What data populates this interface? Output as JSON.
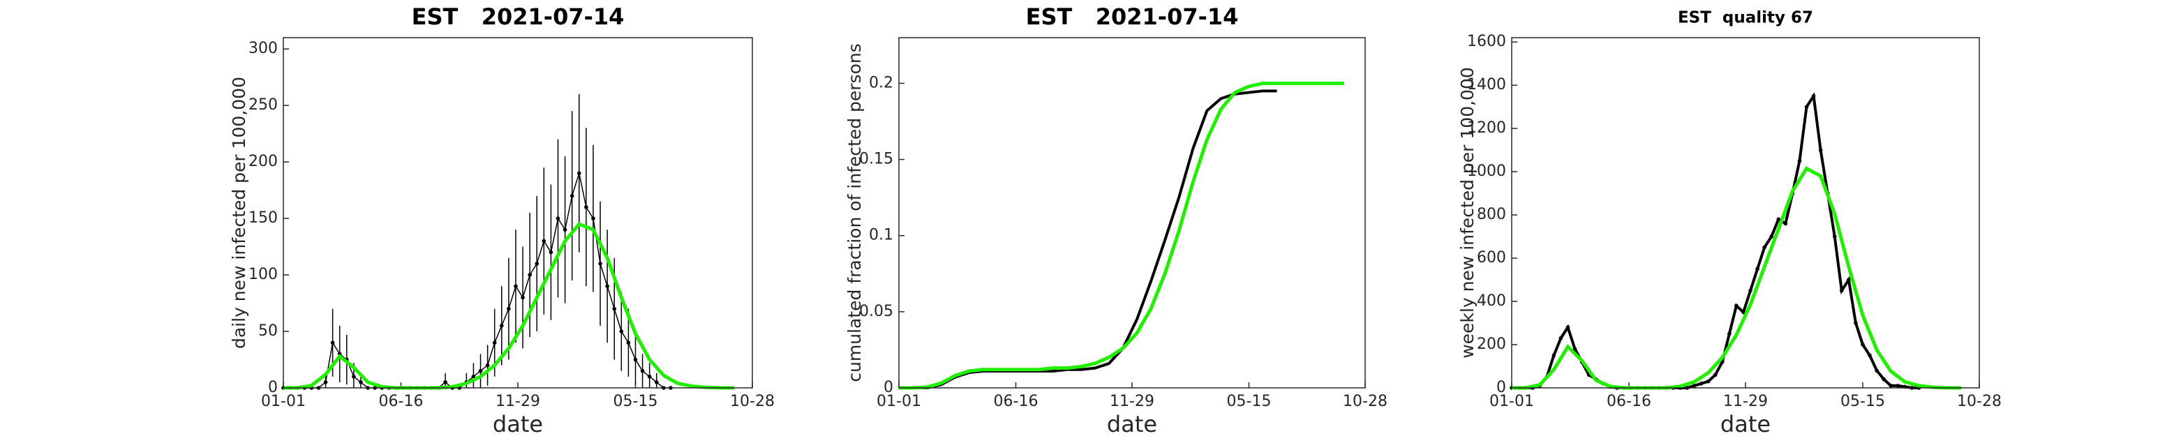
{
  "chart_data": [
    {
      "type": "errorbar",
      "title": "EST   2021-07-14",
      "xlabel": "date",
      "ylabel": "daily new infected per 100,000",
      "xlim": [
        0,
        666
      ],
      "xticks": [
        {
          "value": 0,
          "label": "01-01"
        },
        {
          "value": 167,
          "label": "06-16"
        },
        {
          "value": 333,
          "label": "11-29"
        },
        {
          "value": 500,
          "label": "05-15"
        },
        {
          "value": 666,
          "label": "10-28"
        }
      ],
      "ylim": [
        0,
        310
      ],
      "yticks": [
        0,
        50,
        100,
        150,
        200,
        250,
        300
      ],
      "series": [
        {
          "color": "#000000",
          "markers": true,
          "x": [
            0,
            10,
            20,
            30,
            40,
            50,
            60,
            70,
            80,
            90,
            100,
            110,
            120,
            130,
            140,
            150,
            160,
            170,
            180,
            190,
            200,
            210,
            220,
            230,
            240,
            250,
            260,
            270,
            280,
            290,
            300,
            310,
            320,
            330,
            340,
            350,
            360,
            370,
            380,
            390,
            400,
            410,
            420,
            430,
            440,
            450,
            460,
            470,
            480,
            490,
            500,
            510,
            520,
            530,
            540,
            550
          ],
          "values": [
            0,
            0,
            0,
            0,
            0,
            0,
            5,
            40,
            30,
            25,
            10,
            5,
            0,
            0,
            0,
            0,
            0,
            0,
            0,
            0,
            0,
            0,
            0,
            5,
            0,
            0,
            5,
            10,
            15,
            20,
            40,
            55,
            70,
            90,
            80,
            100,
            110,
            130,
            120,
            150,
            140,
            170,
            190,
            160,
            150,
            110,
            90,
            70,
            50,
            40,
            25,
            15,
            10,
            5,
            0,
            0
          ],
          "errors": [
            0,
            0,
            0,
            0,
            0,
            0,
            8,
            30,
            25,
            22,
            12,
            8,
            0,
            0,
            0,
            0,
            0,
            0,
            0,
            0,
            0,
            0,
            0,
            8,
            0,
            0,
            8,
            12,
            15,
            18,
            30,
            35,
            45,
            50,
            45,
            55,
            60,
            65,
            60,
            70,
            65,
            75,
            70,
            70,
            65,
            55,
            50,
            45,
            35,
            30,
            22,
            15,
            12,
            8,
            0,
            0
          ]
        },
        {
          "color": "#22ee00",
          "markers": false,
          "x": [
            0,
            20,
            40,
            60,
            80,
            100,
            120,
            140,
            160,
            180,
            200,
            220,
            240,
            260,
            280,
            300,
            320,
            340,
            360,
            380,
            400,
            420,
            440,
            460,
            480,
            500,
            520,
            540,
            560,
            580,
            600,
            620,
            640
          ],
          "values": [
            0,
            0,
            2,
            12,
            28,
            18,
            5,
            1,
            0,
            0,
            0,
            0,
            1,
            4,
            10,
            20,
            35,
            55,
            80,
            105,
            130,
            145,
            140,
            115,
            80,
            48,
            25,
            11,
            4,
            1.5,
            0.5,
            0,
            0
          ]
        }
      ]
    },
    {
      "type": "line",
      "title": "EST   2021-07-14",
      "xlabel": "date",
      "ylabel": "cumulated fraction of infected persons",
      "xlim": [
        0,
        666
      ],
      "xticks": [
        {
          "value": 0,
          "label": "01-01"
        },
        {
          "value": 167,
          "label": "06-16"
        },
        {
          "value": 333,
          "label": "11-29"
        },
        {
          "value": 500,
          "label": "05-15"
        },
        {
          "value": 666,
          "label": "10-28"
        }
      ],
      "ylim": [
        0,
        0.23
      ],
      "yticks": [
        0,
        0.05,
        0.1,
        0.15,
        0.2
      ],
      "series": [
        {
          "color": "#000000",
          "markers": false,
          "x": [
            0,
            20,
            40,
            60,
            80,
            100,
            120,
            140,
            160,
            180,
            200,
            220,
            240,
            260,
            280,
            300,
            320,
            340,
            360,
            380,
            400,
            420,
            440,
            460,
            480,
            500,
            520,
            540
          ],
          "values": [
            0,
            0,
            0,
            0.002,
            0.007,
            0.01,
            0.011,
            0.011,
            0.011,
            0.011,
            0.011,
            0.011,
            0.012,
            0.012,
            0.013,
            0.016,
            0.026,
            0.045,
            0.07,
            0.097,
            0.125,
            0.157,
            0.182,
            0.19,
            0.193,
            0.194,
            0.195,
            0.195
          ]
        },
        {
          "color": "#22ee00",
          "markers": false,
          "x": [
            0,
            20,
            40,
            60,
            80,
            100,
            120,
            140,
            160,
            180,
            200,
            220,
            240,
            260,
            280,
            300,
            320,
            340,
            360,
            380,
            400,
            420,
            440,
            460,
            480,
            500,
            520,
            540,
            560,
            580,
            600,
            620,
            636
          ],
          "values": [
            0,
            0,
            0.0005,
            0.003,
            0.008,
            0.011,
            0.012,
            0.012,
            0.012,
            0.012,
            0.012,
            0.013,
            0.013,
            0.014,
            0.016,
            0.02,
            0.026,
            0.036,
            0.052,
            0.075,
            0.103,
            0.135,
            0.163,
            0.183,
            0.194,
            0.198,
            0.2,
            0.2,
            0.2,
            0.2,
            0.2,
            0.2,
            0.2
          ]
        }
      ]
    },
    {
      "type": "line",
      "title": "EST  quality 67",
      "xlabel": "date",
      "ylabel": "weekly new infected per 100,000",
      "xlim": [
        0,
        666
      ],
      "xticks": [
        {
          "value": 0,
          "label": "01-01"
        },
        {
          "value": 167,
          "label": "06-16"
        },
        {
          "value": 333,
          "label": "11-29"
        },
        {
          "value": 500,
          "label": "05-15"
        },
        {
          "value": 666,
          "label": "10-28"
        }
      ],
      "ylim": [
        0,
        1620
      ],
      "yticks": [
        0,
        200,
        400,
        600,
        800,
        1000,
        1200,
        1400,
        1600
      ],
      "series": [
        {
          "color": "#000000",
          "markers": true,
          "x": [
            0,
            10,
            20,
            30,
            40,
            50,
            60,
            70,
            80,
            90,
            100,
            110,
            120,
            130,
            140,
            150,
            160,
            170,
            180,
            190,
            200,
            210,
            220,
            230,
            240,
            250,
            260,
            270,
            280,
            290,
            300,
            310,
            320,
            330,
            340,
            350,
            360,
            370,
            380,
            390,
            400,
            410,
            420,
            430,
            440,
            450,
            460,
            470,
            480,
            490,
            500,
            510,
            520,
            530,
            540,
            550,
            560,
            570,
            580
          ],
          "values": [
            0,
            0,
            0,
            0,
            10,
            50,
            150,
            230,
            280,
            180,
            120,
            60,
            40,
            20,
            5,
            0,
            0,
            0,
            0,
            0,
            0,
            0,
            0,
            0,
            0,
            0,
            10,
            20,
            30,
            60,
            120,
            250,
            380,
            350,
            450,
            550,
            650,
            700,
            780,
            760,
            900,
            1050,
            1300,
            1350,
            1100,
            900,
            700,
            450,
            500,
            300,
            200,
            150,
            80,
            40,
            10,
            10,
            5,
            0,
            0
          ]
        },
        {
          "color": "#22ee00",
          "markers": false,
          "x": [
            0,
            20,
            40,
            60,
            80,
            100,
            120,
            140,
            160,
            180,
            200,
            220,
            240,
            260,
            280,
            300,
            320,
            340,
            360,
            380,
            400,
            420,
            440,
            460,
            480,
            500,
            520,
            540,
            560,
            580,
            600,
            620,
            640
          ],
          "values": [
            0,
            0,
            14,
            84,
            190,
            126,
            35,
            7,
            0,
            0,
            0,
            0,
            7,
            28,
            70,
            140,
            245,
            385,
            560,
            735,
            910,
            1015,
            980,
            805,
            560,
            336,
            175,
            77,
            28,
            10,
            3,
            0,
            0
          ]
        }
      ]
    }
  ]
}
